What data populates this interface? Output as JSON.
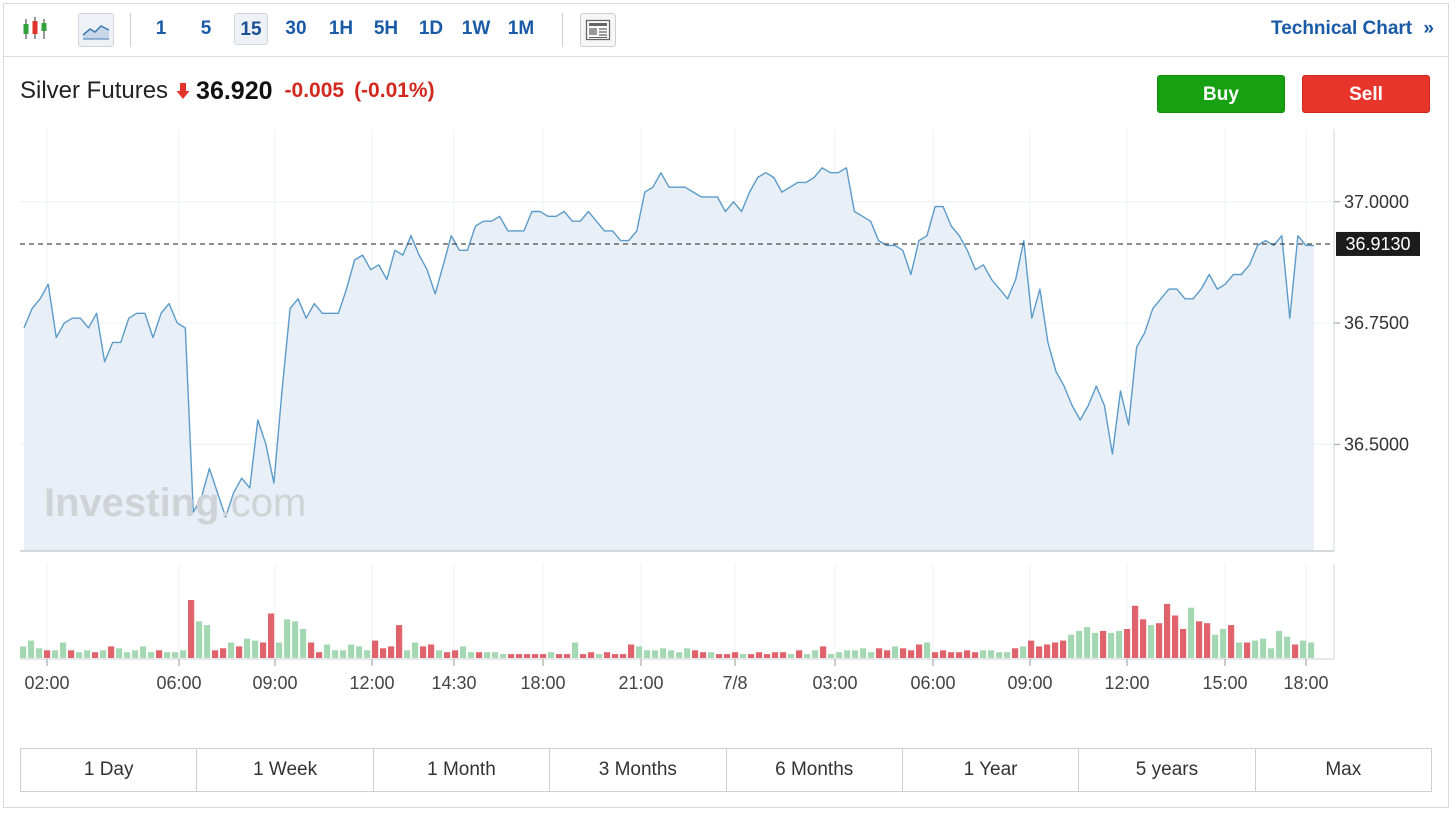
{
  "toolbar": {
    "chart_type_icons": [
      "candlestick-icon",
      "area-chart-icon"
    ],
    "intervals": [
      "1",
      "5",
      "15",
      "30",
      "1H",
      "5H",
      "1D",
      "1W",
      "1M"
    ],
    "active_interval": "15",
    "news_icon": "news-icon",
    "technical_chart_label": "Technical Chart",
    "technical_chart_chevron": "»"
  },
  "quote": {
    "name": "Silver Futures",
    "direction": "down",
    "last": "36.920",
    "change": "-0.005",
    "change_pct": "(-0.01%)"
  },
  "actions": {
    "buy_label": "Buy",
    "sell_label": "Sell"
  },
  "colors": {
    "up": "#17a112",
    "down": "#e8352b",
    "line": "#5b9bc9",
    "area": "#e9eff7",
    "link": "#1a5aa6",
    "vol_up": "#a4d8b3",
    "vol_down": "#e0626a"
  },
  "watermark": "Investing.com",
  "chart_data": {
    "type": "area",
    "x_tick_labels": [
      "02:00",
      "06:00",
      "09:00",
      "12:00",
      "14:30",
      "18:00",
      "21:00",
      "7/8",
      "03:00",
      "06:00",
      "09:00",
      "12:00",
      "15:00",
      "18:00"
    ],
    "y_tick_labels": [
      "37.0000",
      "36.7500",
      "36.5000"
    ],
    "y_ticks": [
      37.0,
      36.75,
      36.5
    ],
    "ylim": [
      36.28,
      37.15
    ],
    "current_price_label": "36.9130",
    "current_price": 36.913,
    "grid": true,
    "series": [
      {
        "values": [
          36.74,
          36.78,
          36.8,
          36.83,
          36.72,
          36.75,
          36.76,
          36.76,
          36.74,
          36.77,
          36.67,
          36.71,
          36.71,
          36.76,
          36.77,
          36.77,
          36.72,
          36.77,
          36.79,
          36.75,
          36.74,
          36.36,
          36.39,
          36.45,
          36.4,
          36.35,
          36.4,
          36.43,
          36.41,
          36.55,
          36.5,
          36.42,
          36.61,
          36.78,
          36.8,
          36.76,
          36.79,
          36.77,
          36.77,
          36.77,
          36.82,
          36.88,
          36.89,
          36.86,
          36.87,
          36.84,
          36.9,
          36.89,
          36.93,
          36.89,
          36.86,
          36.81,
          36.87,
          36.93,
          36.9,
          36.9,
          36.95,
          36.96,
          36.96,
          36.97,
          36.94,
          36.94,
          36.94,
          36.98,
          36.98,
          36.97,
          36.97,
          36.98,
          36.96,
          36.96,
          36.98,
          36.96,
          36.94,
          36.94,
          36.92,
          36.92,
          36.94,
          37.02,
          37.03,
          37.06,
          37.03,
          37.03,
          37.03,
          37.02,
          37.01,
          37.01,
          37.01,
          36.98,
          37.0,
          36.98,
          37.02,
          37.05,
          37.06,
          37.05,
          37.02,
          37.03,
          37.04,
          37.04,
          37.05,
          37.07,
          37.06,
          37.06,
          37.07,
          36.98,
          36.97,
          36.96,
          36.92,
          36.91,
          36.91,
          36.9,
          36.85,
          36.92,
          36.93,
          36.99,
          36.99,
          36.95,
          36.93,
          36.9,
          36.86,
          36.87,
          36.84,
          36.82,
          36.8,
          36.84,
          36.92,
          36.76,
          36.82,
          36.71,
          36.65,
          36.62,
          36.58,
          36.55,
          36.58,
          36.62,
          36.58,
          36.48,
          36.61,
          36.54,
          36.7,
          36.73,
          36.78,
          36.8,
          36.82,
          36.82,
          36.8,
          36.8,
          36.82,
          36.85,
          36.82,
          36.83,
          36.85,
          36.85,
          36.87,
          36.91,
          36.92,
          36.91,
          36.93,
          36.76,
          36.93,
          36.91,
          36.91
        ]
      }
    ],
    "volume": [
      {
        "v": 6,
        "d": "up"
      },
      {
        "v": 9,
        "d": "up"
      },
      {
        "v": 5,
        "d": "up"
      },
      {
        "v": 4,
        "d": "down"
      },
      {
        "v": 4,
        "d": "up"
      },
      {
        "v": 8,
        "d": "up"
      },
      {
        "v": 4,
        "d": "down"
      },
      {
        "v": 3,
        "d": "up"
      },
      {
        "v": 4,
        "d": "up"
      },
      {
        "v": 3,
        "d": "down"
      },
      {
        "v": 4,
        "d": "up"
      },
      {
        "v": 6,
        "d": "down"
      },
      {
        "v": 5,
        "d": "up"
      },
      {
        "v": 3,
        "d": "up"
      },
      {
        "v": 4,
        "d": "up"
      },
      {
        "v": 6,
        "d": "up"
      },
      {
        "v": 3,
        "d": "up"
      },
      {
        "v": 4,
        "d": "down"
      },
      {
        "v": 3,
        "d": "up"
      },
      {
        "v": 3,
        "d": "up"
      },
      {
        "v": 4,
        "d": "up"
      },
      {
        "v": 30,
        "d": "down"
      },
      {
        "v": 19,
        "d": "up"
      },
      {
        "v": 17,
        "d": "up"
      },
      {
        "v": 4,
        "d": "down"
      },
      {
        "v": 5,
        "d": "down"
      },
      {
        "v": 8,
        "d": "up"
      },
      {
        "v": 6,
        "d": "down"
      },
      {
        "v": 10,
        "d": "up"
      },
      {
        "v": 9,
        "d": "up"
      },
      {
        "v": 8,
        "d": "down"
      },
      {
        "v": 23,
        "d": "down"
      },
      {
        "v": 8,
        "d": "up"
      },
      {
        "v": 20,
        "d": "up"
      },
      {
        "v": 19,
        "d": "up"
      },
      {
        "v": 15,
        "d": "up"
      },
      {
        "v": 8,
        "d": "down"
      },
      {
        "v": 3,
        "d": "down"
      },
      {
        "v": 7,
        "d": "up"
      },
      {
        "v": 4,
        "d": "up"
      },
      {
        "v": 4,
        "d": "up"
      },
      {
        "v": 7,
        "d": "up"
      },
      {
        "v": 6,
        "d": "up"
      },
      {
        "v": 4,
        "d": "up"
      },
      {
        "v": 9,
        "d": "down"
      },
      {
        "v": 5,
        "d": "down"
      },
      {
        "v": 6,
        "d": "down"
      },
      {
        "v": 17,
        "d": "down"
      },
      {
        "v": 4,
        "d": "up"
      },
      {
        "v": 8,
        "d": "up"
      },
      {
        "v": 6,
        "d": "down"
      },
      {
        "v": 7,
        "d": "down"
      },
      {
        "v": 4,
        "d": "up"
      },
      {
        "v": 3,
        "d": "down"
      },
      {
        "v": 4,
        "d": "down"
      },
      {
        "v": 6,
        "d": "up"
      },
      {
        "v": 3,
        "d": "up"
      },
      {
        "v": 3,
        "d": "down"
      },
      {
        "v": 3,
        "d": "up"
      },
      {
        "v": 3,
        "d": "up"
      },
      {
        "v": 2,
        "d": "up"
      },
      {
        "v": 2,
        "d": "down"
      },
      {
        "v": 2,
        "d": "down"
      },
      {
        "v": 2,
        "d": "down"
      },
      {
        "v": 2,
        "d": "down"
      },
      {
        "v": 2,
        "d": "down"
      },
      {
        "v": 3,
        "d": "up"
      },
      {
        "v": 2,
        "d": "down"
      },
      {
        "v": 2,
        "d": "down"
      },
      {
        "v": 8,
        "d": "up"
      },
      {
        "v": 2,
        "d": "down"
      },
      {
        "v": 3,
        "d": "down"
      },
      {
        "v": 2,
        "d": "up"
      },
      {
        "v": 3,
        "d": "down"
      },
      {
        "v": 2,
        "d": "down"
      },
      {
        "v": 2,
        "d": "down"
      },
      {
        "v": 7,
        "d": "down"
      },
      {
        "v": 6,
        "d": "up"
      },
      {
        "v": 4,
        "d": "up"
      },
      {
        "v": 4,
        "d": "up"
      },
      {
        "v": 5,
        "d": "up"
      },
      {
        "v": 4,
        "d": "up"
      },
      {
        "v": 3,
        "d": "up"
      },
      {
        "v": 5,
        "d": "up"
      },
      {
        "v": 4,
        "d": "down"
      },
      {
        "v": 3,
        "d": "down"
      },
      {
        "v": 3,
        "d": "up"
      },
      {
        "v": 2,
        "d": "down"
      },
      {
        "v": 2,
        "d": "down"
      },
      {
        "v": 3,
        "d": "down"
      },
      {
        "v": 2,
        "d": "up"
      },
      {
        "v": 2,
        "d": "down"
      },
      {
        "v": 3,
        "d": "down"
      },
      {
        "v": 2,
        "d": "down"
      },
      {
        "v": 3,
        "d": "down"
      },
      {
        "v": 3,
        "d": "down"
      },
      {
        "v": 2,
        "d": "up"
      },
      {
        "v": 4,
        "d": "down"
      },
      {
        "v": 2,
        "d": "up"
      },
      {
        "v": 4,
        "d": "up"
      },
      {
        "v": 6,
        "d": "down"
      },
      {
        "v": 2,
        "d": "up"
      },
      {
        "v": 3,
        "d": "up"
      },
      {
        "v": 4,
        "d": "up"
      },
      {
        "v": 4,
        "d": "up"
      },
      {
        "v": 5,
        "d": "up"
      },
      {
        "v": 3,
        "d": "up"
      },
      {
        "v": 5,
        "d": "down"
      },
      {
        "v": 4,
        "d": "down"
      },
      {
        "v": 6,
        "d": "up"
      },
      {
        "v": 5,
        "d": "down"
      },
      {
        "v": 4,
        "d": "down"
      },
      {
        "v": 7,
        "d": "down"
      },
      {
        "v": 8,
        "d": "up"
      },
      {
        "v": 3,
        "d": "down"
      },
      {
        "v": 4,
        "d": "down"
      },
      {
        "v": 3,
        "d": "down"
      },
      {
        "v": 3,
        "d": "down"
      },
      {
        "v": 4,
        "d": "down"
      },
      {
        "v": 3,
        "d": "down"
      },
      {
        "v": 4,
        "d": "up"
      },
      {
        "v": 4,
        "d": "up"
      },
      {
        "v": 3,
        "d": "up"
      },
      {
        "v": 3,
        "d": "up"
      },
      {
        "v": 5,
        "d": "down"
      },
      {
        "v": 6,
        "d": "up"
      },
      {
        "v": 9,
        "d": "down"
      },
      {
        "v": 6,
        "d": "down"
      },
      {
        "v": 7,
        "d": "down"
      },
      {
        "v": 8,
        "d": "down"
      },
      {
        "v": 9,
        "d": "down"
      },
      {
        "v": 12,
        "d": "up"
      },
      {
        "v": 14,
        "d": "up"
      },
      {
        "v": 16,
        "d": "up"
      },
      {
        "v": 13,
        "d": "up"
      },
      {
        "v": 14,
        "d": "down"
      },
      {
        "v": 13,
        "d": "up"
      },
      {
        "v": 14,
        "d": "up"
      },
      {
        "v": 15,
        "d": "down"
      },
      {
        "v": 27,
        "d": "down"
      },
      {
        "v": 20,
        "d": "down"
      },
      {
        "v": 17,
        "d": "up"
      },
      {
        "v": 18,
        "d": "down"
      },
      {
        "v": 28,
        "d": "down"
      },
      {
        "v": 22,
        "d": "down"
      },
      {
        "v": 15,
        "d": "down"
      },
      {
        "v": 26,
        "d": "up"
      },
      {
        "v": 19,
        "d": "down"
      },
      {
        "v": 18,
        "d": "down"
      },
      {
        "v": 12,
        "d": "up"
      },
      {
        "v": 15,
        "d": "up"
      },
      {
        "v": 17,
        "d": "down"
      },
      {
        "v": 8,
        "d": "up"
      },
      {
        "v": 8,
        "d": "down"
      },
      {
        "v": 9,
        "d": "up"
      },
      {
        "v": 10,
        "d": "up"
      },
      {
        "v": 5,
        "d": "up"
      },
      {
        "v": 14,
        "d": "up"
      },
      {
        "v": 11,
        "d": "up"
      },
      {
        "v": 7,
        "d": "down"
      },
      {
        "v": 9,
        "d": "up"
      },
      {
        "v": 8,
        "d": "up"
      }
    ]
  },
  "ranges": [
    "1 Day",
    "1 Week",
    "1 Month",
    "3 Months",
    "6 Months",
    "1 Year",
    "5 years",
    "Max"
  ]
}
